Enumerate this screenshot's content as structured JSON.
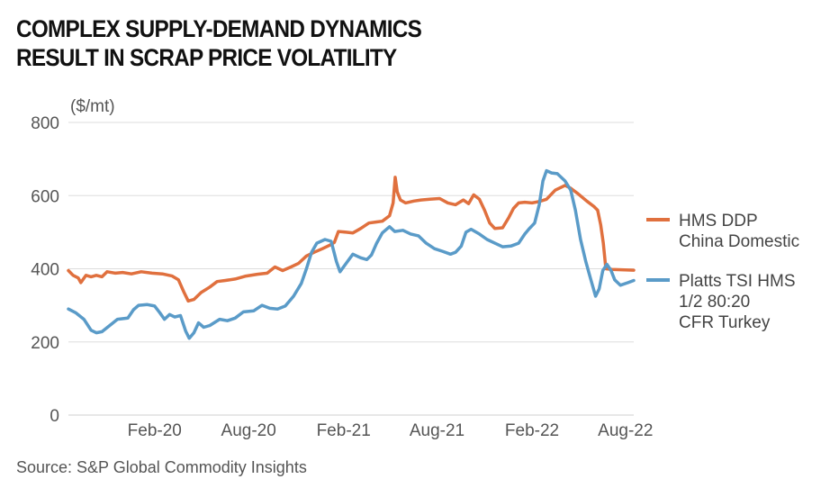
{
  "title_line1": "COMPLEX SUPPLY-DEMAND DYNAMICS",
  "title_line2": "RESULT IN SCRAP PRICE VOLATILITY",
  "source": "Source: S&P Global Commodity Insights",
  "chart_data": {
    "type": "line",
    "unit_label": "($/mt)",
    "ylim": [
      0,
      800
    ],
    "y_ticks": [
      0,
      200,
      400,
      600,
      800
    ],
    "x_ticks": [
      "Feb-20",
      "Aug-20",
      "Feb-21",
      "Aug-21",
      "Feb-22",
      "Aug-22"
    ],
    "x_range": [
      "2019-09-01",
      "2022-08-31"
    ],
    "grid": true,
    "legend_position": "right",
    "series": [
      {
        "name": "HMS DDP China Domestic",
        "legend_lines": [
          "HMS DDP",
          "China Domestic"
        ],
        "color": "#e0703e",
        "points": [
          [
            "2019-09-01",
            395
          ],
          [
            "2019-09-10",
            382
          ],
          [
            "2019-09-20",
            375
          ],
          [
            "2019-09-25",
            362
          ],
          [
            "2019-10-05",
            382
          ],
          [
            "2019-10-15",
            378
          ],
          [
            "2019-10-25",
            382
          ],
          [
            "2019-11-05",
            378
          ],
          [
            "2019-11-15",
            392
          ],
          [
            "2019-12-01",
            388
          ],
          [
            "2019-12-15",
            390
          ],
          [
            "2020-01-01",
            386
          ],
          [
            "2020-01-20",
            392
          ],
          [
            "2020-02-10",
            388
          ],
          [
            "2020-03-01",
            386
          ],
          [
            "2020-03-20",
            380
          ],
          [
            "2020-04-01",
            370
          ],
          [
            "2020-04-12",
            335
          ],
          [
            "2020-04-20",
            312
          ],
          [
            "2020-05-01",
            316
          ],
          [
            "2020-05-15",
            335
          ],
          [
            "2020-06-01",
            350
          ],
          [
            "2020-06-15",
            365
          ],
          [
            "2020-07-01",
            368
          ],
          [
            "2020-07-20",
            372
          ],
          [
            "2020-08-10",
            380
          ],
          [
            "2020-09-01",
            385
          ],
          [
            "2020-09-20",
            388
          ],
          [
            "2020-10-05",
            405
          ],
          [
            "2020-10-20",
            395
          ],
          [
            "2020-11-05",
            405
          ],
          [
            "2020-11-20",
            415
          ],
          [
            "2020-12-05",
            435
          ],
          [
            "2020-12-20",
            445
          ],
          [
            "2021-01-05",
            455
          ],
          [
            "2021-01-20",
            465
          ],
          [
            "2021-01-28",
            472
          ],
          [
            "2021-02-05",
            502
          ],
          [
            "2021-02-20",
            500
          ],
          [
            "2021-03-05",
            498
          ],
          [
            "2021-03-20",
            510
          ],
          [
            "2021-04-05",
            525
          ],
          [
            "2021-04-20",
            528
          ],
          [
            "2021-05-01",
            530
          ],
          [
            "2021-05-15",
            545
          ],
          [
            "2021-05-22",
            580
          ],
          [
            "2021-05-26",
            650
          ],
          [
            "2021-05-30",
            610
          ],
          [
            "2021-06-05",
            588
          ],
          [
            "2021-06-15",
            580
          ],
          [
            "2021-07-01",
            585
          ],
          [
            "2021-07-15",
            588
          ],
          [
            "2021-08-01",
            590
          ],
          [
            "2021-08-20",
            592
          ],
          [
            "2021-09-05",
            580
          ],
          [
            "2021-09-20",
            575
          ],
          [
            "2021-10-05",
            588
          ],
          [
            "2021-10-15",
            578
          ],
          [
            "2021-10-25",
            602
          ],
          [
            "2021-11-05",
            590
          ],
          [
            "2021-11-15",
            560
          ],
          [
            "2021-11-25",
            525
          ],
          [
            "2021-12-05",
            510
          ],
          [
            "2021-12-20",
            512
          ],
          [
            "2022-01-01",
            540
          ],
          [
            "2022-01-10",
            565
          ],
          [
            "2022-01-20",
            580
          ],
          [
            "2022-02-01",
            582
          ],
          [
            "2022-02-15",
            580
          ],
          [
            "2022-03-01",
            584
          ],
          [
            "2022-03-15",
            590
          ],
          [
            "2022-04-01",
            615
          ],
          [
            "2022-04-20",
            628
          ],
          [
            "2022-05-01",
            620
          ],
          [
            "2022-05-15",
            605
          ],
          [
            "2022-06-01",
            585
          ],
          [
            "2022-06-15",
            570
          ],
          [
            "2022-06-22",
            560
          ],
          [
            "2022-06-28",
            520
          ],
          [
            "2022-07-03",
            470
          ],
          [
            "2022-07-08",
            400
          ],
          [
            "2022-07-20",
            398
          ],
          [
            "2022-08-31",
            396
          ]
        ]
      },
      {
        "name": "Platts TSI HMS 1/2 80:20 CFR Turkey",
        "legend_lines": [
          "Platts TSI HMS",
          "1/2 80:20",
          "CFR Turkey"
        ],
        "color": "#5a9bc8",
        "points": [
          [
            "2019-09-01",
            290
          ],
          [
            "2019-09-15",
            280
          ],
          [
            "2019-10-01",
            262
          ],
          [
            "2019-10-15",
            232
          ],
          [
            "2019-10-25",
            225
          ],
          [
            "2019-11-05",
            228
          ],
          [
            "2019-11-20",
            245
          ],
          [
            "2019-12-05",
            262
          ],
          [
            "2019-12-25",
            265
          ],
          [
            "2020-01-05",
            288
          ],
          [
            "2020-01-15",
            300
          ],
          [
            "2020-02-01",
            302
          ],
          [
            "2020-02-15",
            298
          ],
          [
            "2020-02-25",
            280
          ],
          [
            "2020-03-05",
            262
          ],
          [
            "2020-03-15",
            275
          ],
          [
            "2020-03-25",
            268
          ],
          [
            "2020-04-05",
            272
          ],
          [
            "2020-04-15",
            230
          ],
          [
            "2020-04-22",
            210
          ],
          [
            "2020-05-01",
            225
          ],
          [
            "2020-05-10",
            252
          ],
          [
            "2020-05-20",
            240
          ],
          [
            "2020-06-01",
            245
          ],
          [
            "2020-06-20",
            262
          ],
          [
            "2020-07-05",
            258
          ],
          [
            "2020-07-20",
            265
          ],
          [
            "2020-08-05",
            282
          ],
          [
            "2020-08-25",
            285
          ],
          [
            "2020-09-10",
            300
          ],
          [
            "2020-09-25",
            292
          ],
          [
            "2020-10-10",
            290
          ],
          [
            "2020-10-25",
            298
          ],
          [
            "2020-11-10",
            325
          ],
          [
            "2020-11-25",
            360
          ],
          [
            "2020-12-05",
            400
          ],
          [
            "2020-12-15",
            445
          ],
          [
            "2020-12-25",
            470
          ],
          [
            "2021-01-10",
            480
          ],
          [
            "2021-01-22",
            475
          ],
          [
            "2021-02-01",
            420
          ],
          [
            "2021-02-08",
            392
          ],
          [
            "2021-02-20",
            415
          ],
          [
            "2021-03-05",
            440
          ],
          [
            "2021-03-20",
            430
          ],
          [
            "2021-04-01",
            425
          ],
          [
            "2021-04-10",
            438
          ],
          [
            "2021-04-20",
            470
          ],
          [
            "2021-05-01",
            498
          ],
          [
            "2021-05-15",
            515
          ],
          [
            "2021-05-25",
            502
          ],
          [
            "2021-06-10",
            505
          ],
          [
            "2021-06-25",
            495
          ],
          [
            "2021-07-10",
            490
          ],
          [
            "2021-07-25",
            470
          ],
          [
            "2021-08-10",
            455
          ],
          [
            "2021-08-25",
            448
          ],
          [
            "2021-09-10",
            440
          ],
          [
            "2021-09-20",
            445
          ],
          [
            "2021-10-01",
            462
          ],
          [
            "2021-10-10",
            500
          ],
          [
            "2021-10-20",
            508
          ],
          [
            "2021-11-05",
            495
          ],
          [
            "2021-11-20",
            480
          ],
          [
            "2021-12-05",
            470
          ],
          [
            "2021-12-20",
            460
          ],
          [
            "2022-01-05",
            462
          ],
          [
            "2022-01-20",
            470
          ],
          [
            "2022-02-01",
            495
          ],
          [
            "2022-02-10",
            510
          ],
          [
            "2022-02-20",
            525
          ],
          [
            "2022-03-01",
            575
          ],
          [
            "2022-03-08",
            640
          ],
          [
            "2022-03-15",
            668
          ],
          [
            "2022-03-25",
            662
          ],
          [
            "2022-04-05",
            660
          ],
          [
            "2022-04-20",
            640
          ],
          [
            "2022-05-01",
            615
          ],
          [
            "2022-05-10",
            560
          ],
          [
            "2022-05-20",
            480
          ],
          [
            "2022-05-30",
            420
          ],
          [
            "2022-06-08",
            375
          ],
          [
            "2022-06-18",
            325
          ],
          [
            "2022-06-25",
            345
          ],
          [
            "2022-07-02",
            395
          ],
          [
            "2022-07-10",
            412
          ],
          [
            "2022-07-18",
            395
          ],
          [
            "2022-07-25",
            370
          ],
          [
            "2022-08-05",
            355
          ],
          [
            "2022-08-20",
            362
          ],
          [
            "2022-08-31",
            368
          ]
        ]
      }
    ]
  }
}
